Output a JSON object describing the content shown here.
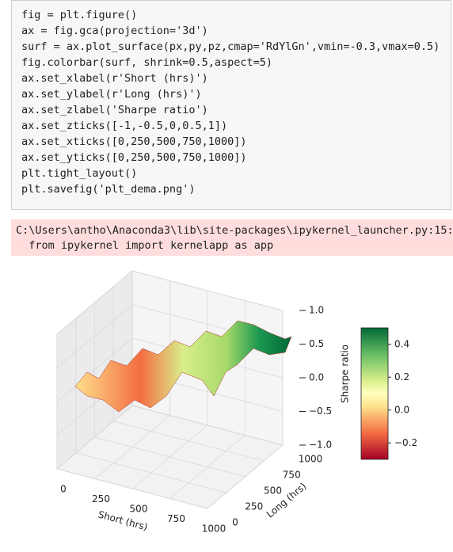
{
  "notebook": {
    "code": [
      "fig = plt.figure()",
      "ax = fig.gca(projection='3d')",
      "surf = ax.plot_surface(px,py,pz,cmap='RdYlGn',vmin=-0.3,vmax=0.5)",
      "fig.colorbar(surf, shrink=0.5,aspect=5)",
      "ax.set_xlabel(r'Short (hrs)')",
      "ax.set_ylabel(r'Long (hrs)')",
      "ax.set_zlabel('Sharpe ratio')",
      "ax.set_zticks([-1,-0.5,0,0.5,1])",
      "ax.set_xticks([0,250,500,750,1000])",
      "ax.set_yticks([0,250,500,750,1000])",
      "plt.tight_layout()",
      "plt.savefig('plt_dema.png')"
    ],
    "stderr": [
      "C:\\Users\\antho\\Anaconda3\\lib\\site-packages\\ipykernel_launcher.py:15:",
      "  from ipykernel import kernelapp as app"
    ]
  },
  "chart_data": {
    "type": "surface3d",
    "xlabel": "Short (hrs)",
    "ylabel": "Long (hrs)",
    "zlabel": "Sharpe ratio",
    "xlim": [
      0,
      1000
    ],
    "xticks": [
      0,
      250,
      500,
      750,
      1000
    ],
    "ylim": [
      0,
      1000
    ],
    "yticks": [
      0,
      250,
      500,
      750,
      1000
    ],
    "zlim": [
      -1,
      1
    ],
    "zticks": [
      {
        "value": -1,
        "label": "−1.0"
      },
      {
        "value": -0.5,
        "label": "−0.5"
      },
      {
        "value": 0,
        "label": "0.0"
      },
      0.5,
      {
        "value": 1,
        "label": "1.0"
      }
    ],
    "colormap": "RdYlGn",
    "clim": [
      -0.3,
      0.5
    ],
    "cticks": [
      {
        "value": -0.2,
        "label": "−0.2"
      },
      {
        "value": 0,
        "label": "0.0"
      },
      0.2,
      0.4
    ],
    "grid": true
  }
}
